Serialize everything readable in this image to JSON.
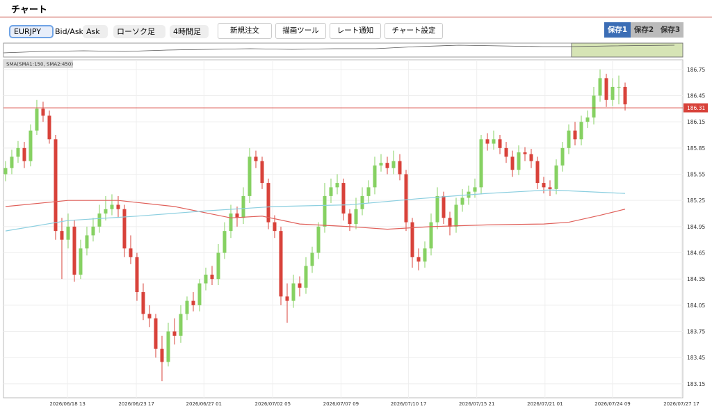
{
  "header": {
    "title": "チャート"
  },
  "toolbar": {
    "symbol": "EURJPY",
    "bid_ask_label": "Bid/Ask",
    "price_side": "Ask",
    "chart_style": "ローソク足",
    "timeframe": "4時間足",
    "buttons": [
      "新規注文",
      "描画ツール",
      "レート通知",
      "チャート設定"
    ],
    "saves": [
      "保存1",
      "保存2",
      "保存3"
    ]
  },
  "chart_data": {
    "type": "candlestick",
    "indicator_label": "SMA(SMA1:150, SMA2:450)",
    "up_color": "#86d162",
    "down_color": "#d8423a",
    "grid": true,
    "xlim": [
      -0.33,
      108.22
    ],
    "ylim": [
      182.99,
      186.86
    ],
    "yticks": [
      183.15,
      183.45,
      183.75,
      184.05,
      184.35,
      184.65,
      184.95,
      185.25,
      185.55,
      185.85,
      186.15,
      186.45,
      186.75
    ],
    "xticks": [
      {
        "value": 9.9,
        "label": "2026/06/18 13"
      },
      {
        "value": 20.9,
        "label": "2026/06/23 17"
      },
      {
        "value": 31.7,
        "label": "2026/06/27 01"
      },
      {
        "value": 42.7,
        "label": "2026/07/02 05"
      },
      {
        "value": 53.6,
        "label": "2026/07/07 09"
      },
      {
        "value": 64.4,
        "label": "2026/07/10 17"
      },
      {
        "value": 75.3,
        "label": "2026/07/15 21"
      },
      {
        "value": 86.2,
        "label": "2026/07/21 01"
      },
      {
        "value": 97.0,
        "label": "2026/07/24 09"
      },
      {
        "value": 108.0,
        "label": "2026/07/27 17"
      }
    ],
    "open": [
      185.55,
      185.62,
      185.75,
      185.85,
      185.7,
      186.05,
      186.3,
      186.22,
      185.95,
      184.9,
      184.8,
      184.95,
      184.4,
      184.7,
      184.85,
      184.95,
      185.1,
      185.15,
      185.2,
      185.15,
      184.7,
      184.6,
      184.2,
      183.95,
      183.9,
      183.55,
      183.4,
      183.75,
      183.7,
      183.95,
      184.1,
      184.05,
      184.3,
      184.4,
      184.35,
      184.65,
      184.9,
      185.1,
      185.05,
      185.3,
      185.75,
      185.7,
      185.45,
      185.0,
      184.9,
      184.15,
      184.1,
      184.3,
      184.25,
      184.5,
      184.65,
      184.95,
      185.3,
      185.4,
      185.45,
      185.1,
      184.98,
      185.15,
      185.3,
      185.4,
      185.65,
      185.68,
      185.62,
      185.7,
      185.55,
      185.0,
      184.6,
      184.55,
      184.7,
      185.0,
      185.3,
      185.05,
      184.95,
      185.2,
      185.28,
      185.35,
      185.4,
      185.95,
      185.9,
      185.95,
      185.85,
      185.75,
      185.6,
      185.8,
      185.78,
      185.7,
      185.45,
      185.4,
      185.38,
      185.65,
      185.85,
      186.05,
      185.95,
      186.15,
      186.2,
      186.45,
      186.65,
      186.4,
      186.55,
      186.55
    ],
    "high": [
      185.7,
      185.83,
      185.93,
      185.92,
      186.12,
      186.4,
      186.38,
      186.28,
      186.0,
      185.05,
      185.1,
      185.02,
      184.8,
      184.95,
      185.05,
      185.2,
      185.3,
      185.32,
      185.3,
      185.2,
      184.85,
      184.65,
      184.3,
      184.05,
      183.95,
      183.7,
      183.85,
      183.9,
      184.05,
      184.15,
      184.2,
      184.35,
      184.48,
      184.5,
      184.75,
      185.0,
      185.2,
      185.18,
      185.4,
      185.85,
      185.82,
      185.75,
      185.5,
      185.08,
      184.95,
      184.3,
      184.4,
      184.38,
      184.6,
      184.72,
      185.0,
      185.45,
      185.5,
      185.55,
      185.5,
      185.15,
      185.28,
      185.4,
      185.48,
      185.75,
      185.78,
      185.75,
      185.82,
      185.78,
      185.6,
      185.05,
      184.7,
      184.78,
      185.1,
      185.4,
      185.35,
      185.12,
      185.28,
      185.38,
      185.42,
      185.5,
      186.0,
      186.02,
      186.05,
      186.0,
      185.92,
      185.82,
      185.88,
      185.86,
      185.84,
      185.75,
      185.52,
      185.48,
      185.72,
      185.92,
      186.12,
      186.15,
      186.22,
      186.28,
      186.55,
      186.75,
      186.7,
      186.65,
      186.68,
      186.6
    ],
    "low": [
      185.47,
      185.55,
      185.68,
      185.62,
      185.64,
      186.0,
      186.15,
      185.9,
      184.8,
      184.35,
      184.7,
      184.32,
      184.35,
      184.62,
      184.78,
      184.88,
      185.02,
      185.08,
      185.05,
      184.6,
      184.52,
      184.1,
      183.88,
      183.8,
      183.45,
      183.18,
      183.35,
      183.6,
      183.62,
      183.88,
      183.98,
      183.98,
      184.22,
      184.28,
      184.28,
      184.58,
      184.82,
      184.95,
      184.98,
      185.22,
      185.62,
      185.38,
      184.92,
      184.82,
      184.05,
      183.85,
      184.02,
      184.15,
      184.18,
      184.42,
      184.58,
      184.88,
      185.22,
      185.32,
      185.02,
      184.9,
      184.92,
      185.08,
      185.22,
      185.32,
      185.58,
      185.55,
      185.55,
      185.48,
      184.9,
      184.48,
      184.45,
      184.48,
      184.62,
      184.92,
      184.98,
      184.85,
      184.88,
      185.12,
      185.2,
      185.28,
      185.32,
      185.82,
      185.83,
      185.78,
      185.68,
      185.52,
      185.54,
      185.7,
      185.62,
      185.38,
      185.33,
      185.3,
      185.32,
      185.58,
      185.78,
      185.88,
      185.88,
      186.08,
      186.12,
      186.38,
      186.32,
      186.33,
      186.35,
      186.28
    ],
    "close": [
      185.62,
      185.75,
      185.85,
      185.7,
      186.05,
      186.3,
      186.22,
      185.95,
      184.9,
      184.8,
      184.95,
      184.4,
      184.7,
      184.85,
      184.95,
      185.1,
      185.15,
      185.2,
      185.15,
      184.7,
      184.6,
      184.2,
      183.95,
      183.9,
      183.55,
      183.4,
      183.75,
      183.7,
      183.95,
      184.1,
      184.05,
      184.3,
      184.4,
      184.35,
      184.65,
      184.9,
      185.1,
      185.05,
      185.3,
      185.75,
      185.7,
      185.45,
      185.0,
      184.9,
      184.15,
      184.1,
      184.3,
      184.25,
      184.5,
      184.65,
      184.95,
      185.3,
      185.4,
      185.45,
      185.1,
      184.98,
      185.15,
      185.3,
      185.4,
      185.65,
      185.68,
      185.62,
      185.7,
      185.55,
      185.0,
      184.6,
      184.55,
      184.7,
      185.0,
      185.3,
      185.05,
      184.95,
      185.2,
      185.28,
      185.35,
      185.4,
      185.95,
      185.9,
      185.95,
      185.85,
      185.75,
      185.6,
      185.8,
      185.78,
      185.7,
      185.45,
      185.4,
      185.38,
      185.65,
      185.85,
      186.05,
      185.95,
      186.15,
      186.2,
      186.45,
      186.65,
      186.4,
      186.55,
      186.55,
      186.35
    ],
    "series": [
      {
        "color": "#e0605a",
        "x": [
          0,
          10,
          18,
          27,
          36,
          41,
          47,
          55,
          61,
          68,
          77,
          86,
          90,
          95,
          99
        ],
        "values": [
          185.18,
          185.25,
          185.25,
          185.18,
          185.05,
          185.07,
          184.98,
          184.95,
          184.92,
          184.95,
          184.97,
          184.98,
          185.0,
          185.08,
          185.15
        ]
      },
      {
        "color": "#8ccfe0",
        "x": [
          0,
          10,
          21,
          32,
          43,
          55,
          66,
          77,
          87,
          99
        ],
        "values": [
          184.9,
          185.02,
          185.07,
          185.13,
          185.18,
          185.2,
          185.27,
          185.33,
          185.37,
          185.33
        ]
      }
    ],
    "current_price": 186.31,
    "current_price_color": "#d8423a"
  }
}
